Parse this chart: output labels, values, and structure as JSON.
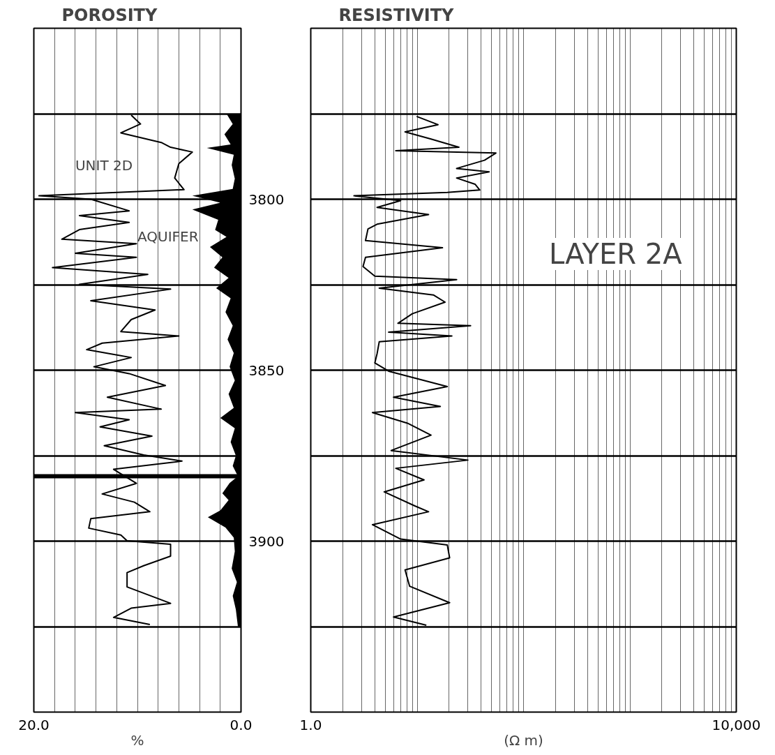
{
  "chart_data": [
    {
      "type": "line",
      "orientation": "horizontal",
      "title": "POROSITY",
      "xlabel": "%",
      "xlim": [
        20,
        0
      ],
      "xticks": [
        {
          "value": 20,
          "label": "20.0"
        },
        {
          "value": 18,
          "label": null
        },
        {
          "value": 16,
          "label": null
        },
        {
          "value": 14,
          "label": null
        },
        {
          "value": 12,
          "label": null
        },
        {
          "value": 10,
          "label": null
        },
        {
          "value": 8,
          "label": null
        },
        {
          "value": 6,
          "label": null
        },
        {
          "value": 4,
          "label": null
        },
        {
          "value": 2,
          "label": null
        },
        {
          "value": 0,
          "label": "0.0"
        }
      ],
      "ylim": [
        3950,
        3750
      ],
      "yticks": [
        {
          "value": 3775,
          "label": null
        },
        3800,
        {
          "value": 3825,
          "label": null
        },
        3850,
        {
          "value": 3875,
          "label": null
        },
        3900,
        {
          "value": 3925,
          "label": null
        }
      ],
      "grid": true,
      "ref_lines": [
        {
          "axis": "y",
          "value": 3881
        }
      ],
      "annotations": [
        "UNIT 2D",
        "AQUIFER"
      ],
      "series": [
        {
          "color": "#000000",
          "x": [
            3775.4,
            3778,
            3780.6,
            3783.4,
            3784.8,
            3786.2,
            3789.6,
            3793.8,
            3797.2,
            3799,
            3800,
            3803.4,
            3804.8,
            3806.8,
            3808.9,
            3811.7,
            3813,
            3815.8,
            3817,
            3820,
            3822,
            3824.9,
            3826.3,
            3829.7,
            3832.4,
            3835.2,
            3838.7,
            3840,
            3842.1,
            3844,
            3846.3,
            3849,
            3851,
            3854.5,
            3857.9,
            3861.4,
            3862.4,
            3864.5,
            3866.6,
            3869.3,
            3872.1,
            3874.8,
            3876.6,
            3879,
            3883.1,
            3886.2,
            3888.6,
            3891.4,
            3893.4,
            3896.2,
            3898.2,
            3899.9,
            3900.9,
            3904.4,
            3907.2,
            3909.2,
            3913.4,
            3918.2,
            3919.6,
            3922.3,
            3924.4
          ],
          "values": [
            10.6,
            9.7,
            11.6,
            7.7,
            6.8,
            4.7,
            6.0,
            6.4,
            5.5,
            19.5,
            14.5,
            10.8,
            15.6,
            10.8,
            15.6,
            17.3,
            10.1,
            16,
            10.1,
            18.2,
            9.0,
            15.6,
            6.8,
            14.5,
            8.3,
            10.6,
            11.6,
            6.0,
            13.4,
            14.9,
            10.6,
            14.2,
            10.8,
            7.3,
            12.9,
            7.7,
            16,
            10.8,
            13.6,
            8.6,
            13.2,
            9.4,
            5.7,
            12.3,
            10.1,
            13.4,
            10.3,
            8.8,
            14.5,
            14.7,
            11.6,
            11.0,
            6.8,
            6.8,
            9.4,
            11.0,
            11.0,
            6.8,
            10.6,
            12.3,
            8.8
          ]
        },
        {
          "type": "area",
          "color": "#000000",
          "x": [
            3775,
            3778,
            3781,
            3784,
            3785,
            3787,
            3790,
            3794,
            3797,
            3799,
            3801,
            3803,
            3806,
            3809,
            3811,
            3814,
            3817,
            3820,
            3823,
            3826,
            3829,
            3833,
            3837,
            3841,
            3845,
            3849,
            3853,
            3857,
            3861,
            3864,
            3867,
            3871,
            3875,
            3878,
            3881,
            3883,
            3886,
            3888,
            3891,
            3893,
            3896,
            3899,
            3903,
            3908,
            3912,
            3916,
            3920,
            3925
          ],
          "values": [
            1.4,
            0.8,
            1.6,
            1.0,
            3.3,
            0.7,
            0.9,
            0.6,
            0.8,
            4.7,
            2.0,
            4.7,
            2.2,
            2.5,
            1.4,
            3.0,
            1.8,
            2.6,
            1.2,
            2.4,
            1.0,
            1.5,
            0.8,
            1.3,
            0.7,
            1.1,
            0.6,
            1.2,
            0.7,
            2.0,
            0.6,
            1.0,
            0.5,
            0.8,
            0.3,
            1.1,
            1.8,
            1.2,
            2.0,
            3.2,
            1.5,
            0.7,
            0.6,
            0.9,
            0.4,
            0.8,
            0.5,
            0.3
          ]
        }
      ]
    },
    {
      "type": "line",
      "orientation": "horizontal",
      "title": "RESISTIVITY",
      "xlabel": "(Ω m)",
      "log": "x",
      "tick_labels": "x",
      "xlim": [
        1,
        10000
      ],
      "xticks": [
        {
          "value": 1,
          "label": "1.0"
        },
        {
          "value": 2,
          "label": null
        },
        {
          "value": 3,
          "label": null
        },
        {
          "value": 4,
          "label": null
        },
        {
          "value": 5,
          "label": null
        },
        {
          "value": 6,
          "label": null
        },
        {
          "value": 7,
          "label": null
        },
        {
          "value": 8,
          "label": null
        },
        {
          "value": 9,
          "label": null
        },
        {
          "value": 10,
          "label": null
        },
        {
          "value": 20,
          "label": null
        },
        {
          "value": 30,
          "label": null
        },
        {
          "value": 40,
          "label": null
        },
        {
          "value": 50,
          "label": null
        },
        {
          "value": 60,
          "label": null
        },
        {
          "value": 70,
          "label": null
        },
        {
          "value": 80,
          "label": null
        },
        {
          "value": 90,
          "label": null
        },
        {
          "value": 100,
          "label": null
        },
        {
          "value": 200,
          "label": null
        },
        {
          "value": 300,
          "label": null
        },
        {
          "value": 400,
          "label": null
        },
        {
          "value": 500,
          "label": null
        },
        {
          "value": 600,
          "label": null
        },
        {
          "value": 700,
          "label": null
        },
        {
          "value": 800,
          "label": null
        },
        {
          "value": 900,
          "label": null
        },
        {
          "value": 1000,
          "label": null
        },
        {
          "value": 2000,
          "label": null
        },
        {
          "value": 3000,
          "label": null
        },
        {
          "value": 4000,
          "label": null
        },
        {
          "value": 5000,
          "label": null
        },
        {
          "value": 6000,
          "label": null
        },
        {
          "value": 7000,
          "label": null
        },
        {
          "value": 8000,
          "label": null
        },
        {
          "value": 9000,
          "label": null
        },
        {
          "value": 10000,
          "label": "10,000"
        }
      ],
      "ylim": [
        3950,
        3750
      ],
      "yticks": [
        {
          "value": 3775,
          "label": null
        },
        {
          "value": 3800,
          "label": null
        },
        {
          "value": 3825,
          "label": null
        },
        {
          "value": 3850,
          "label": null
        },
        {
          "value": 3875,
          "label": null
        },
        {
          "value": 3900,
          "label": null
        },
        {
          "value": 3925,
          "label": null
        }
      ],
      "grid": true,
      "annotations": [
        "LAYER 2A"
      ],
      "series": [
        {
          "color": "#000000",
          "x": [
            3775.8,
            3778.2,
            3780.3,
            3782.4,
            3784.8,
            3785.8,
            3786.5,
            3788.6,
            3791,
            3792,
            3793.8,
            3795.6,
            3797.3,
            3798,
            3799,
            3800.4,
            3802.4,
            3804.5,
            3807.3,
            3808.7,
            3812.1,
            3814.2,
            3817,
            3819.7,
            3822.5,
            3823.5,
            3826,
            3828,
            3830.1,
            3833.5,
            3836.3,
            3837,
            3838.9,
            3840,
            3841.7,
            3845.2,
            3847.9,
            3850.3,
            3854.8,
            3857.9,
            3860.6,
            3862.4,
            3865.5,
            3869,
            3873.5,
            3876.3,
            3878.7,
            3882.1,
            3885.6,
            3889.7,
            3891.4,
            3895.2,
            3899.4,
            3901.1,
            3904.9,
            3908.4,
            3913.2,
            3918,
            3922.2,
            3924.6
          ],
          "values": [
            9.9,
            15.7,
            7.7,
            13.5,
            24.7,
            6.3,
            55,
            43,
            23.5,
            47.5,
            23.5,
            35,
            38.8,
            19.2,
            2.55,
            7.0,
            4.2,
            12.8,
            4.2,
            3.45,
            3.27,
            17.3,
            3.27,
            3.1,
            4.0,
            23.5,
            4.4,
            14.2,
            18.3,
            9.0,
            6.6,
            31.8,
            5.4,
            21.2,
            4.4,
            4.2,
            4.0,
            5.4,
            19.2,
            6.0,
            16.5,
            3.8,
            8.1,
            13.5,
            5.7,
            30,
            6.3,
            11.6,
            4.9,
            9.5,
            12.8,
            3.8,
            7.0,
            19.2,
            20.2,
            7.7,
            8.5,
            20.2,
            6.0,
            12.2
          ]
        }
      ]
    }
  ]
}
